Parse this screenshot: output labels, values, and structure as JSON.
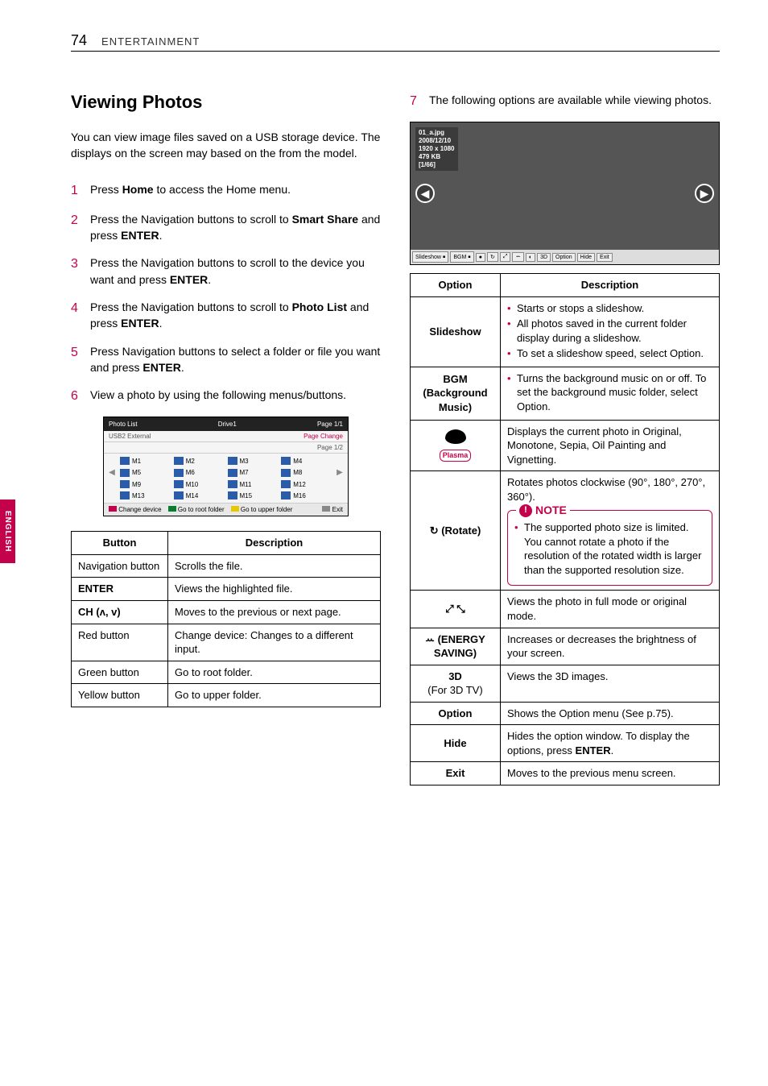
{
  "header": {
    "page_number": "74",
    "section": "ENTERTAINMENT"
  },
  "side_tab": "ENGLISH",
  "left": {
    "heading": "Viewing Photos",
    "intro": "You can view image files saved on a USB storage device. The displays on the screen may based on the from the model.",
    "steps": {
      "s1": {
        "n": "1",
        "text_before": "Press ",
        "bold1": "Home",
        "text_after": " to access the Home menu."
      },
      "s2": {
        "n": "2",
        "text_before": "Press the Navigation buttons to scroll to ",
        "bold1": "Smart Share",
        "mid": " and press ",
        "bold2": "ENTER",
        "suffix": "."
      },
      "s3": {
        "n": "3",
        "text_before": "Press the Navigation buttons to scroll to the device you want and press ",
        "bold1": "ENTER",
        "suffix": "."
      },
      "s4": {
        "n": "4",
        "text_before": "Press the Navigation buttons to scroll to ",
        "bold1": "Photo List",
        "mid": " and press ",
        "bold2": "ENTER",
        "suffix": "."
      },
      "s5": {
        "n": "5",
        "text_before": "Press Navigation buttons to select a folder or file you want and press ",
        "bold1": "ENTER",
        "suffix": "."
      },
      "s6": {
        "n": "6",
        "text": "View a photo by using the following menus/buttons."
      }
    },
    "photo_list_fig": {
      "title": "Photo List",
      "drive": "Drive1",
      "page_top": "Page 1/1",
      "ch_page": "Page Change",
      "ext": "USB2 External",
      "page_bottom": "Page 1/2",
      "folders": [
        "M1",
        "M2",
        "M3",
        "M4",
        "M5",
        "M6",
        "M7",
        "M8",
        "M9",
        "M10",
        "M11",
        "M12",
        "M13",
        "M14",
        "M15",
        "M16"
      ],
      "foot": {
        "change": "Change device",
        "root": "Go to root folder",
        "upper": "Go to upper folder",
        "exit": "Exit"
      },
      "colors": {
        "red": "#c4014b",
        "green": "#0a7d2e",
        "yellow": "#e8c900",
        "blue": "#2a5caa"
      }
    },
    "button_table": {
      "headers": {
        "c1": "Button",
        "c2": "Description"
      },
      "rows": [
        {
          "c1": "Navigation button",
          "c2": "Scrolls the file.",
          "c1_bold": false
        },
        {
          "c1": "ENTER",
          "c2": "Views the highlighted file.",
          "c1_bold": true
        },
        {
          "c1": "CH (ʌ, v)",
          "c2": "Moves to the previous or next page.",
          "c1_bold": true
        },
        {
          "c1": "Red button",
          "c2": "Change device: Changes to a different input.",
          "c1_bold": false
        },
        {
          "c1": "Green button",
          "c2": "Go to root folder.",
          "c1_bold": false
        },
        {
          "c1": "Yellow button",
          "c2": "Go to upper folder.",
          "c1_bold": false
        }
      ]
    }
  },
  "right": {
    "step7": {
      "n": "7",
      "text": "The following options are available while viewing photos."
    },
    "viewer": {
      "overlay": {
        "file": "01_a.jpg",
        "date": "2008/12/10",
        "res": "1920 x 1080",
        "size": "479 KB",
        "idx": "[1/66]"
      },
      "toolbar": [
        "Slideshow ￭",
        "BGM ￭",
        "●",
        "↻",
        "⤢",
        "ꕀ",
        "◐",
        "3D",
        "Option",
        "Hide",
        "Exit"
      ]
    },
    "options_table": {
      "headers": {
        "c1": "Option",
        "c2": "Description"
      },
      "rows": {
        "slideshow": {
          "name": "Slideshow",
          "b1": "Starts or stops a slideshow.",
          "b2": "All photos saved in the current folder display during a slideshow.",
          "b3": "To set a slideshow speed, select Option."
        },
        "bgm": {
          "name": "BGM (Background Music)",
          "b1": "Turns the background music on or off. To set the background music folder, select Option."
        },
        "palette": {
          "badge": "Plasma",
          "desc": "Displays the current photo in Original, Monotone, Sepia, Oil Painting and Vignetting."
        },
        "rotate": {
          "name": "↻ (Rotate)",
          "desc": "Rotates photos clockwise (90°, 180°, 270°, 360°).",
          "note_title": "NOTE",
          "note_b1": "The supported photo size is limited. You cannot rotate a photo if the resolution of the rotated width is larger than the supported resolution size."
        },
        "fullmode": {
          "desc": "Views the photo in full mode or original mode."
        },
        "energy": {
          "name": "ꕀ (ENERGY SAVING)",
          "desc": "Increases or decreases the brightness of your screen."
        },
        "threeD": {
          "name1": "3D",
          "name2": "(For 3D TV)",
          "desc": "Views the 3D images."
        },
        "option": {
          "name": "Option",
          "desc": "Shows the Option menu (See p.75)."
        },
        "hide": {
          "name": "Hide",
          "desc_before": "Hides the option window. To display the options, press ",
          "bold": "ENTER",
          "suffix": "."
        },
        "exit": {
          "name": "Exit",
          "desc": "Moves to the previous menu screen."
        }
      }
    }
  },
  "colors": {
    "accent": "#c4014b"
  }
}
